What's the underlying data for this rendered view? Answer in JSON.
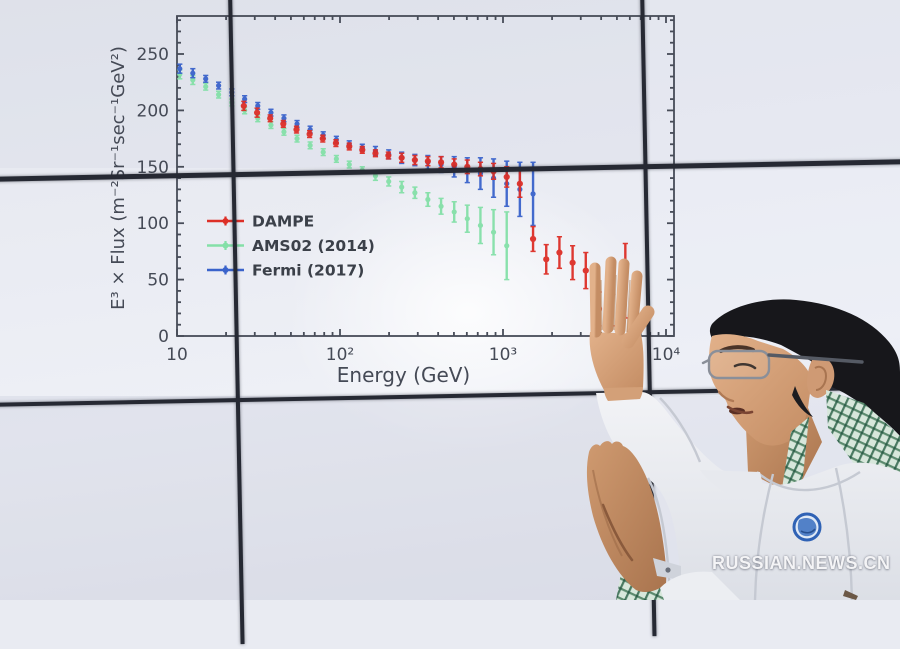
{
  "watermark": "RUSSIAN.NEWS.CN",
  "colors": {
    "dampe_red": "#dd2f27",
    "ams02_green": "#84e0a8",
    "fermi_blue": "#3a63cb",
    "axis": "#474c58",
    "tick_label": "#454a56",
    "bezel": "#262933",
    "wall": "#e9ebf2",
    "lab_coat": "#eef0f4",
    "badge_blue": "#3a6fc0"
  },
  "chart_data": {
    "type": "scatter",
    "title": "",
    "xlabel": "Energy (GeV)",
    "ylabel": "E³ × Flux  (m⁻²Sr⁻¹sec⁻¹GeV²)",
    "x_scale": "log",
    "xlim": [
      10,
      11200
    ],
    "ylim": [
      0,
      284
    ],
    "x_ticks": [
      "10",
      "10²",
      "10³",
      "10⁴"
    ],
    "x_tick_values": [
      10,
      100,
      1000,
      10000
    ],
    "y_ticks": [
      0,
      50,
      100,
      150,
      200,
      250
    ],
    "grid": false,
    "legend_position": "center-left",
    "series": [
      {
        "name": "AMS02 (2014)",
        "color": "#84e0a8",
        "x": [
          10.4,
          12.5,
          15,
          18,
          21.7,
          26,
          31.3,
          37.7,
          45.3,
          54.5,
          65.6,
          78.9,
          95,
          114,
          137,
          165,
          199,
          239,
          288,
          346,
          417,
          502,
          604,
          727,
          875,
          1054
        ],
        "y": [
          232,
          227,
          221,
          214,
          207,
          200,
          193,
          187,
          181,
          175,
          169,
          163,
          157,
          152,
          147,
          142,
          137,
          132,
          127,
          121,
          115,
          110,
          104,
          98,
          92,
          80
        ],
        "err": [
          4,
          4,
          3,
          3,
          3,
          3,
          3,
          3,
          3,
          3,
          3,
          3,
          3,
          3,
          3,
          4,
          4,
          5,
          5,
          6,
          7,
          9,
          12,
          16,
          20,
          30
        ]
      },
      {
        "name": "Fermi (2017)",
        "color": "#3a63cb",
        "x": [
          10.4,
          12.5,
          15,
          18,
          21.7,
          26,
          31.3,
          37.7,
          45.3,
          54.5,
          65.6,
          78.9,
          95,
          114,
          137,
          165,
          199,
          239,
          288,
          346,
          417,
          502,
          604,
          727,
          875,
          1054,
          1269,
          1529
        ],
        "y": [
          237,
          233,
          228,
          222,
          216,
          210,
          204,
          198,
          193,
          188,
          183,
          178,
          174,
          170,
          167,
          164,
          161,
          158,
          156,
          154,
          152,
          150,
          147,
          144,
          140,
          135,
          130,
          126
        ],
        "err": [
          4,
          4,
          3,
          3,
          3,
          3,
          3,
          3,
          3,
          3,
          3,
          3,
          3,
          3,
          3,
          4,
          4,
          5,
          5,
          6,
          7,
          9,
          11,
          14,
          17,
          20,
          24,
          28
        ]
      },
      {
        "name": "DAMPE",
        "color": "#dd2f27",
        "x": [
          25.7,
          31,
          37.3,
          44.9,
          54.1,
          65.1,
          78.4,
          94.4,
          114,
          137,
          165,
          198,
          239,
          288,
          346,
          417,
          502,
          604,
          727,
          875,
          1054,
          1269,
          1529,
          1842,
          2219,
          2673,
          3220,
          3880,
          4670,
          5630
        ],
        "y": [
          204,
          198,
          193,
          188,
          183,
          179,
          175,
          171,
          168,
          165,
          162,
          160,
          158,
          156,
          155,
          154,
          152,
          150,
          148,
          146,
          141,
          135,
          86,
          68,
          74,
          65,
          58,
          24,
          37,
          49
        ],
        "err": [
          4,
          4,
          3,
          3,
          3,
          3,
          3,
          3,
          3,
          3,
          3,
          3,
          4,
          4,
          4,
          5,
          5,
          6,
          6,
          7,
          9,
          12,
          11,
          13,
          14,
          15,
          16,
          15,
          28,
          33
        ]
      }
    ]
  }
}
